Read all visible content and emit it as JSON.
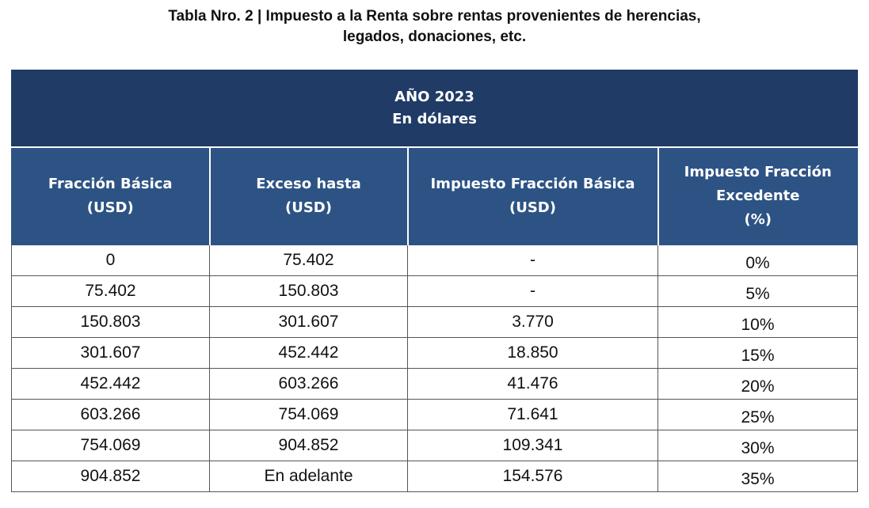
{
  "caption": {
    "line1": "Tabla Nro. 2 | Impuesto a la Renta sobre rentas provenientes de herencias,",
    "line2": "legados, donaciones, etc."
  },
  "table": {
    "banner": {
      "line1": "AÑO 2023",
      "line2": "En dólares"
    },
    "headers": [
      {
        "line1": "Fracción Básica",
        "line2": "(USD)",
        "line3": ""
      },
      {
        "line1": "Exceso hasta",
        "line2": "(USD)",
        "line3": ""
      },
      {
        "line1": "Impuesto Fracción Básica",
        "line2": "(USD)",
        "line3": ""
      },
      {
        "line1": "Impuesto Fracción",
        "line2": "Excedente",
        "line3": "(%)"
      }
    ],
    "rows": [
      {
        "fraccion_basica": "0",
        "exceso_hasta": "75.402",
        "impuesto_fraccion_basica": "-",
        "impuesto_excedente": "0%"
      },
      {
        "fraccion_basica": "75.402",
        "exceso_hasta": "150.803",
        "impuesto_fraccion_basica": "-",
        "impuesto_excedente": "5%"
      },
      {
        "fraccion_basica": "150.803",
        "exceso_hasta": "301.607",
        "impuesto_fraccion_basica": "3.770",
        "impuesto_excedente": "10%"
      },
      {
        "fraccion_basica": "301.607",
        "exceso_hasta": "452.442",
        "impuesto_fraccion_basica": "18.850",
        "impuesto_excedente": "15%"
      },
      {
        "fraccion_basica": "452.442",
        "exceso_hasta": "603.266",
        "impuesto_fraccion_basica": "41.476",
        "impuesto_excedente": "20%"
      },
      {
        "fraccion_basica": "603.266",
        "exceso_hasta": "754.069",
        "impuesto_fraccion_basica": "71.641",
        "impuesto_excedente": "25%"
      },
      {
        "fraccion_basica": "754.069",
        "exceso_hasta": "904.852",
        "impuesto_fraccion_basica": "109.341",
        "impuesto_excedente": "30%"
      },
      {
        "fraccion_basica": "904.852",
        "exceso_hasta": "En adelante",
        "impuesto_fraccion_basica": "154.576",
        "impuesto_excedente": "35%"
      }
    ]
  },
  "colors": {
    "banner_bg": "#1f3b66",
    "header_bg": "#2d5384",
    "header_text": "#ffffff",
    "grid": "#555555"
  }
}
